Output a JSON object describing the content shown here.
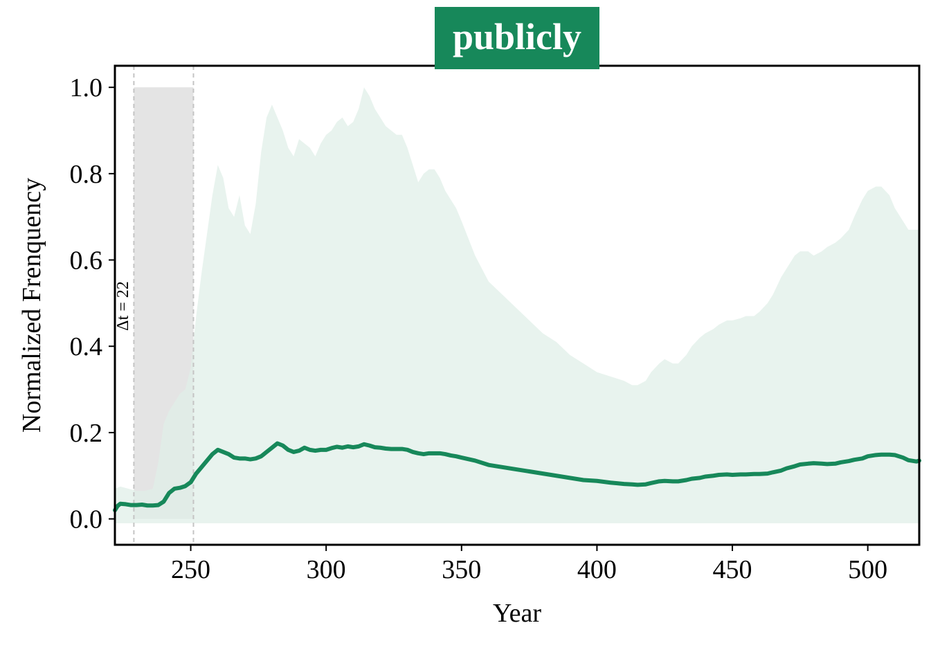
{
  "chart_data": {
    "type": "area",
    "title": "publicly",
    "xlabel": "Year",
    "ylabel": "Normalized Frenquency",
    "xlim": [
      222,
      519
    ],
    "ylim": [
      -0.06,
      1.05
    ],
    "x_ticks": [
      250,
      300,
      350,
      400,
      450,
      500
    ],
    "y_ticks": [
      0.0,
      0.2,
      0.4,
      0.6,
      0.8,
      1.0
    ],
    "x_tick_labels": [
      "250",
      "300",
      "350",
      "400",
      "450",
      "500"
    ],
    "y_tick_labels": [
      "0.0",
      "0.2",
      "0.4",
      "0.6",
      "0.8",
      "1.0"
    ],
    "grid": false,
    "legend": "none",
    "colors": {
      "accent": "#17885a",
      "band": "#e0efe8",
      "highlight": "#e4e4e4",
      "dashed": "#c4c4c4",
      "title_bg": "#17885a",
      "title_text": "#ffffff"
    },
    "highlight_span": {
      "x_start": 229,
      "x_end": 251,
      "y_top": 1.0
    },
    "annotation": "Δt = 22",
    "band": {
      "x": [
        222,
        224,
        227,
        230,
        233,
        236,
        238,
        240,
        242,
        244,
        246,
        248,
        250,
        252,
        254,
        256,
        258,
        260,
        262,
        264,
        266,
        268,
        270,
        272,
        274,
        276,
        278,
        280,
        282,
        284,
        286,
        288,
        290,
        292,
        294,
        296,
        298,
        300,
        302,
        304,
        306,
        308,
        310,
        312,
        314,
        316,
        318,
        320,
        322,
        324,
        326,
        328,
        330,
        332,
        334,
        336,
        338,
        340,
        342,
        344,
        346,
        348,
        350,
        355,
        360,
        365,
        370,
        375,
        380,
        385,
        390,
        395,
        400,
        405,
        410,
        413,
        415,
        418,
        420,
        423,
        425,
        428,
        430,
        433,
        435,
        438,
        440,
        443,
        445,
        448,
        450,
        453,
        455,
        458,
        460,
        463,
        465,
        468,
        470,
        473,
        475,
        478,
        480,
        483,
        485,
        488,
        490,
        493,
        495,
        498,
        500,
        503,
        505,
        508,
        510,
        513,
        515,
        518,
        519
      ],
      "upper": [
        0.07,
        0.075,
        0.07,
        0.065,
        0.065,
        0.07,
        0.13,
        0.22,
        0.25,
        0.27,
        0.29,
        0.3,
        0.35,
        0.47,
        0.57,
        0.66,
        0.75,
        0.82,
        0.79,
        0.72,
        0.7,
        0.75,
        0.68,
        0.66,
        0.73,
        0.85,
        0.93,
        0.96,
        0.93,
        0.9,
        0.86,
        0.84,
        0.88,
        0.87,
        0.86,
        0.84,
        0.87,
        0.89,
        0.9,
        0.92,
        0.93,
        0.91,
        0.92,
        0.95,
        1.0,
        0.98,
        0.95,
        0.93,
        0.91,
        0.9,
        0.89,
        0.89,
        0.86,
        0.82,
        0.78,
        0.8,
        0.81,
        0.81,
        0.79,
        0.76,
        0.74,
        0.72,
        0.69,
        0.61,
        0.55,
        0.52,
        0.49,
        0.46,
        0.43,
        0.41,
        0.38,
        0.36,
        0.34,
        0.33,
        0.32,
        0.31,
        0.31,
        0.32,
        0.34,
        0.36,
        0.37,
        0.36,
        0.36,
        0.38,
        0.4,
        0.42,
        0.43,
        0.44,
        0.45,
        0.46,
        0.46,
        0.465,
        0.47,
        0.47,
        0.48,
        0.5,
        0.52,
        0.56,
        0.58,
        0.61,
        0.62,
        0.62,
        0.61,
        0.62,
        0.63,
        0.64,
        0.65,
        0.67,
        0.7,
        0.74,
        0.76,
        0.77,
        0.77,
        0.75,
        0.72,
        0.69,
        0.67,
        0.67,
        0.67
      ],
      "lower": -0.01
    },
    "series": [
      {
        "x": [
          222,
          223,
          224,
          226,
          228,
          230,
          232,
          234,
          236,
          238,
          240,
          242,
          244,
          246,
          248,
          250,
          252,
          254,
          256,
          258,
          260,
          262,
          264,
          266,
          268,
          270,
          272,
          274,
          276,
          278,
          280,
          282,
          284,
          286,
          288,
          290,
          292,
          294,
          296,
          298,
          300,
          302,
          304,
          306,
          308,
          310,
          312,
          314,
          316,
          318,
          320,
          322,
          324,
          326,
          328,
          330,
          332,
          334,
          336,
          338,
          340,
          342,
          344,
          346,
          348,
          350,
          355,
          360,
          365,
          370,
          375,
          380,
          385,
          390,
          395,
          400,
          405,
          410,
          413,
          415,
          418,
          420,
          423,
          425,
          428,
          430,
          433,
          435,
          438,
          440,
          443,
          445,
          448,
          450,
          453,
          455,
          458,
          460,
          463,
          465,
          468,
          470,
          473,
          475,
          478,
          480,
          483,
          485,
          488,
          490,
          493,
          495,
          498,
          500,
          503,
          505,
          508,
          510,
          513,
          515,
          518,
          519
        ],
        "values": [
          0.02,
          0.03,
          0.035,
          0.034,
          0.032,
          0.032,
          0.033,
          0.031,
          0.031,
          0.032,
          0.04,
          0.06,
          0.07,
          0.072,
          0.076,
          0.085,
          0.105,
          0.12,
          0.135,
          0.15,
          0.16,
          0.155,
          0.15,
          0.142,
          0.14,
          0.14,
          0.138,
          0.14,
          0.145,
          0.155,
          0.165,
          0.175,
          0.17,
          0.16,
          0.155,
          0.158,
          0.165,
          0.16,
          0.158,
          0.16,
          0.16,
          0.164,
          0.167,
          0.165,
          0.168,
          0.166,
          0.168,
          0.173,
          0.17,
          0.166,
          0.165,
          0.163,
          0.162,
          0.162,
          0.162,
          0.16,
          0.155,
          0.152,
          0.15,
          0.152,
          0.152,
          0.152,
          0.15,
          0.147,
          0.145,
          0.142,
          0.135,
          0.125,
          0.12,
          0.115,
          0.11,
          0.105,
          0.1,
          0.095,
          0.09,
          0.088,
          0.084,
          0.081,
          0.08,
          0.079,
          0.08,
          0.083,
          0.087,
          0.088,
          0.087,
          0.087,
          0.09,
          0.093,
          0.095,
          0.098,
          0.1,
          0.102,
          0.103,
          0.102,
          0.103,
          0.103,
          0.104,
          0.104,
          0.105,
          0.108,
          0.112,
          0.117,
          0.122,
          0.126,
          0.128,
          0.129,
          0.128,
          0.127,
          0.128,
          0.131,
          0.134,
          0.137,
          0.14,
          0.145,
          0.148,
          0.149,
          0.149,
          0.148,
          0.142,
          0.136,
          0.133,
          0.135
        ]
      }
    ]
  }
}
